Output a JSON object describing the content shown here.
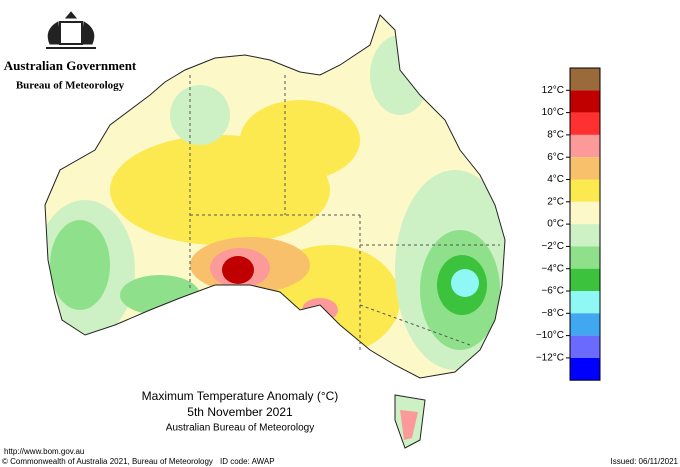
{
  "header": {
    "government": "Australian Government",
    "bureau": "Bureau of Meteorology"
  },
  "map": {
    "title": "Maximum Temperature Anomaly (°C)",
    "date": "5th November 2021",
    "source": "Australian Bureau of Meteorology"
  },
  "legend": {
    "colors": [
      "#9b6a3a",
      "#c00000",
      "#ff3030",
      "#fc9a9a",
      "#f8c06a",
      "#fce94f",
      "#fdf8c8",
      "#cdf1c4",
      "#8ee08a",
      "#3cc23c",
      "#8ff7f4",
      "#3fa8f0",
      "#6a6aff",
      "#0000ff"
    ],
    "labels": [
      "12°C",
      "10°C",
      "8°C",
      "6°C",
      "4°C",
      "2°C",
      "0°C",
      "−2°C",
      "−4°C",
      "−6°C",
      "−8°C",
      "−10°C",
      "−12°C"
    ]
  },
  "footer": {
    "url": "http://www.bom.gov.au",
    "copyright": "© Commonwealth of Australia 2021, Bureau of Meteorology",
    "id_code": "ID code: AWAP",
    "issued": "Issued: 06/11/2021"
  }
}
